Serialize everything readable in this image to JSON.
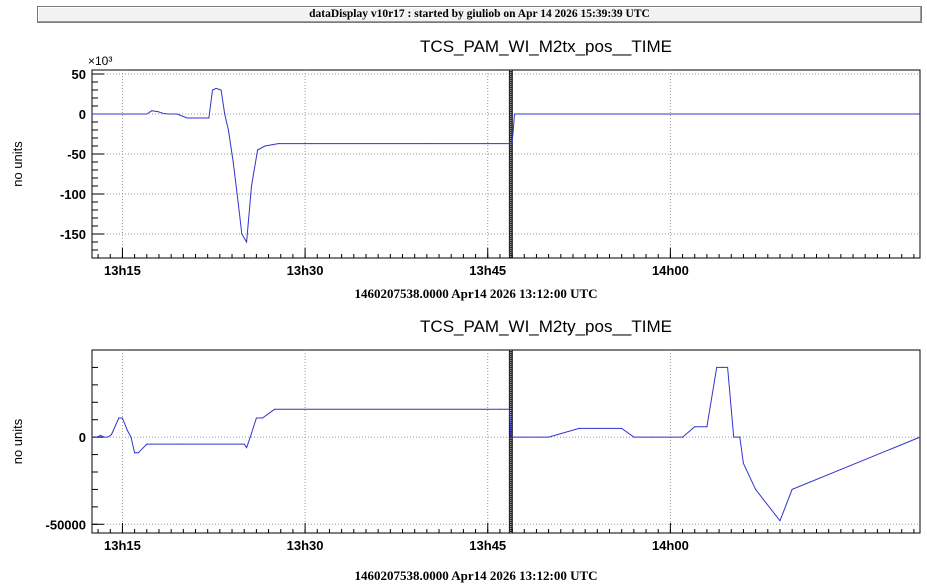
{
  "window": {
    "title": "dataDisplay v10r17 : started by giuliob on Apr 14 2026 15:39:39 UTC"
  },
  "colors": {
    "series": "#3333cc",
    "grid": "#9a9a9a",
    "marker": "#000000"
  },
  "chart_data": [
    {
      "type": "line",
      "title": "TCS_PAM_WI_M2tx_pos__TIME",
      "ylabel": "no units",
      "xlabel": "1460207538.0000 Apr14 2026 13:12:00 UTC",
      "y_multiplier": "×10³",
      "x_unit": "minutes",
      "xlim": [
        12.5,
        80.5
      ],
      "ylim": [
        -180,
        55
      ],
      "grid": true,
      "x_ticks": [
        {
          "value": 15,
          "label": "13h15"
        },
        {
          "value": 30,
          "label": "13h30"
        },
        {
          "value": 45,
          "label": "13h45"
        },
        {
          "value": 60,
          "label": "14h00"
        }
      ],
      "y_ticks": [
        {
          "value": 50,
          "label": "50"
        },
        {
          "value": 0,
          "label": "0"
        },
        {
          "value": -50,
          "label": "-50"
        },
        {
          "value": -100,
          "label": "-100"
        },
        {
          "value": -150,
          "label": "-150"
        }
      ],
      "vertical_marker": 46.9,
      "series": [
        {
          "x": [
            12.5,
            17.0,
            17.4,
            17.9,
            18.3,
            18.7,
            19.5,
            20.3,
            21.2,
            22.1,
            22.4,
            22.7,
            23.1,
            23.4,
            23.7,
            24.1,
            24.5,
            24.8,
            25.2,
            25.6,
            26.1,
            26.7,
            27.8,
            30.0,
            40.0,
            46.0,
            46.8,
            47.0,
            47.1,
            47.2,
            48.0,
            60.0,
            70.0,
            80.5
          ],
          "y": [
            0,
            0,
            4,
            3,
            1,
            0,
            0,
            -5,
            -5,
            -5,
            30,
            32,
            30,
            0,
            -20,
            -60,
            -110,
            -150,
            -160,
            -90,
            -45,
            -40,
            -37,
            -37,
            -37,
            -37,
            -37,
            -36,
            -20,
            0,
            0,
            0,
            0,
            0
          ]
        }
      ]
    },
    {
      "type": "line",
      "title": "TCS_PAM_WI_M2ty_pos__TIME",
      "ylabel": "no units",
      "xlabel": "1460207538.0000 Apr14 2026 13:12:00 UTC",
      "x_unit": "minutes",
      "xlim": [
        12.5,
        80.5
      ],
      "ylim": [
        -55000,
        50000
      ],
      "grid": true,
      "x_ticks": [
        {
          "value": 15,
          "label": "13h15"
        },
        {
          "value": 30,
          "label": "13h30"
        },
        {
          "value": 45,
          "label": "13h45"
        },
        {
          "value": 60,
          "label": "14h00"
        }
      ],
      "y_ticks": [
        {
          "value": 0,
          "label": "0"
        },
        {
          "value": -50000,
          "label": "-50000"
        }
      ],
      "vertical_marker": 46.9,
      "series": [
        {
          "x": [
            12.5,
            12.9,
            13.2,
            13.5,
            13.8,
            14.1,
            14.7,
            15.0,
            15.4,
            15.7,
            16.0,
            16.3,
            17.0,
            20.0,
            25.0,
            25.2,
            25.5,
            26.0,
            26.5,
            27.5,
            35.0,
            46.0,
            46.8,
            46.9,
            47.2,
            50.0,
            52.5,
            54.0,
            56.0,
            57.0,
            58.5,
            61.0,
            62.0,
            63.0,
            63.8,
            64.3,
            64.7,
            65.2,
            65.7,
            66.0,
            67.0,
            69.0,
            70.0,
            80.5
          ],
          "y": [
            0,
            0,
            1000,
            0,
            0,
            1500,
            11000,
            11000,
            4000,
            0,
            -9000,
            -9000,
            -4000,
            -4000,
            -4000,
            -6000,
            0,
            11000,
            11000,
            16000,
            16000,
            16000,
            16000,
            0,
            0,
            0,
            5000,
            5000,
            5000,
            0,
            0,
            0,
            6000,
            6000,
            40000,
            40000,
            40000,
            0,
            0,
            -15000,
            -30000,
            -48000,
            -30000,
            0
          ]
        }
      ]
    }
  ]
}
